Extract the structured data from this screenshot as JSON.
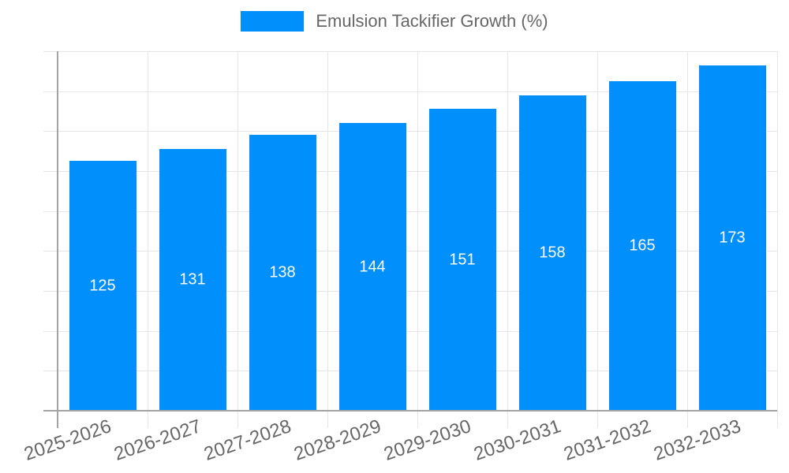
{
  "legend": {
    "label": "Emulsion Tackifier Growth (%)"
  },
  "chart_data": {
    "type": "bar",
    "title": "",
    "xlabel": "",
    "ylabel": "",
    "categories": [
      "2025-2026",
      "2026-2027",
      "2027-2028",
      "2028-2029",
      "2029-2030",
      "2030-2031",
      "2031-2032",
      "2032-2033"
    ],
    "series": [
      {
        "name": "Emulsion Tackifier Growth (%)",
        "values": [
          125,
          131,
          138,
          144,
          151,
          158,
          165,
          173
        ]
      }
    ],
    "ylim": [
      0,
      180
    ],
    "ytick_step": 20,
    "yticks": [
      0,
      20,
      40,
      60,
      80,
      100,
      120,
      140,
      160,
      180
    ],
    "grid": true,
    "legend_position": "top",
    "bar_labels_shown": true
  },
  "colors": {
    "bar": "#008FFB",
    "bar_label": "#FFFFFF",
    "grid_line": "#E6E6E6",
    "axis_line": "#A3A3A3",
    "axis_text": "#666666",
    "legend_text": "#666666",
    "background": "#FFFFFF"
  }
}
